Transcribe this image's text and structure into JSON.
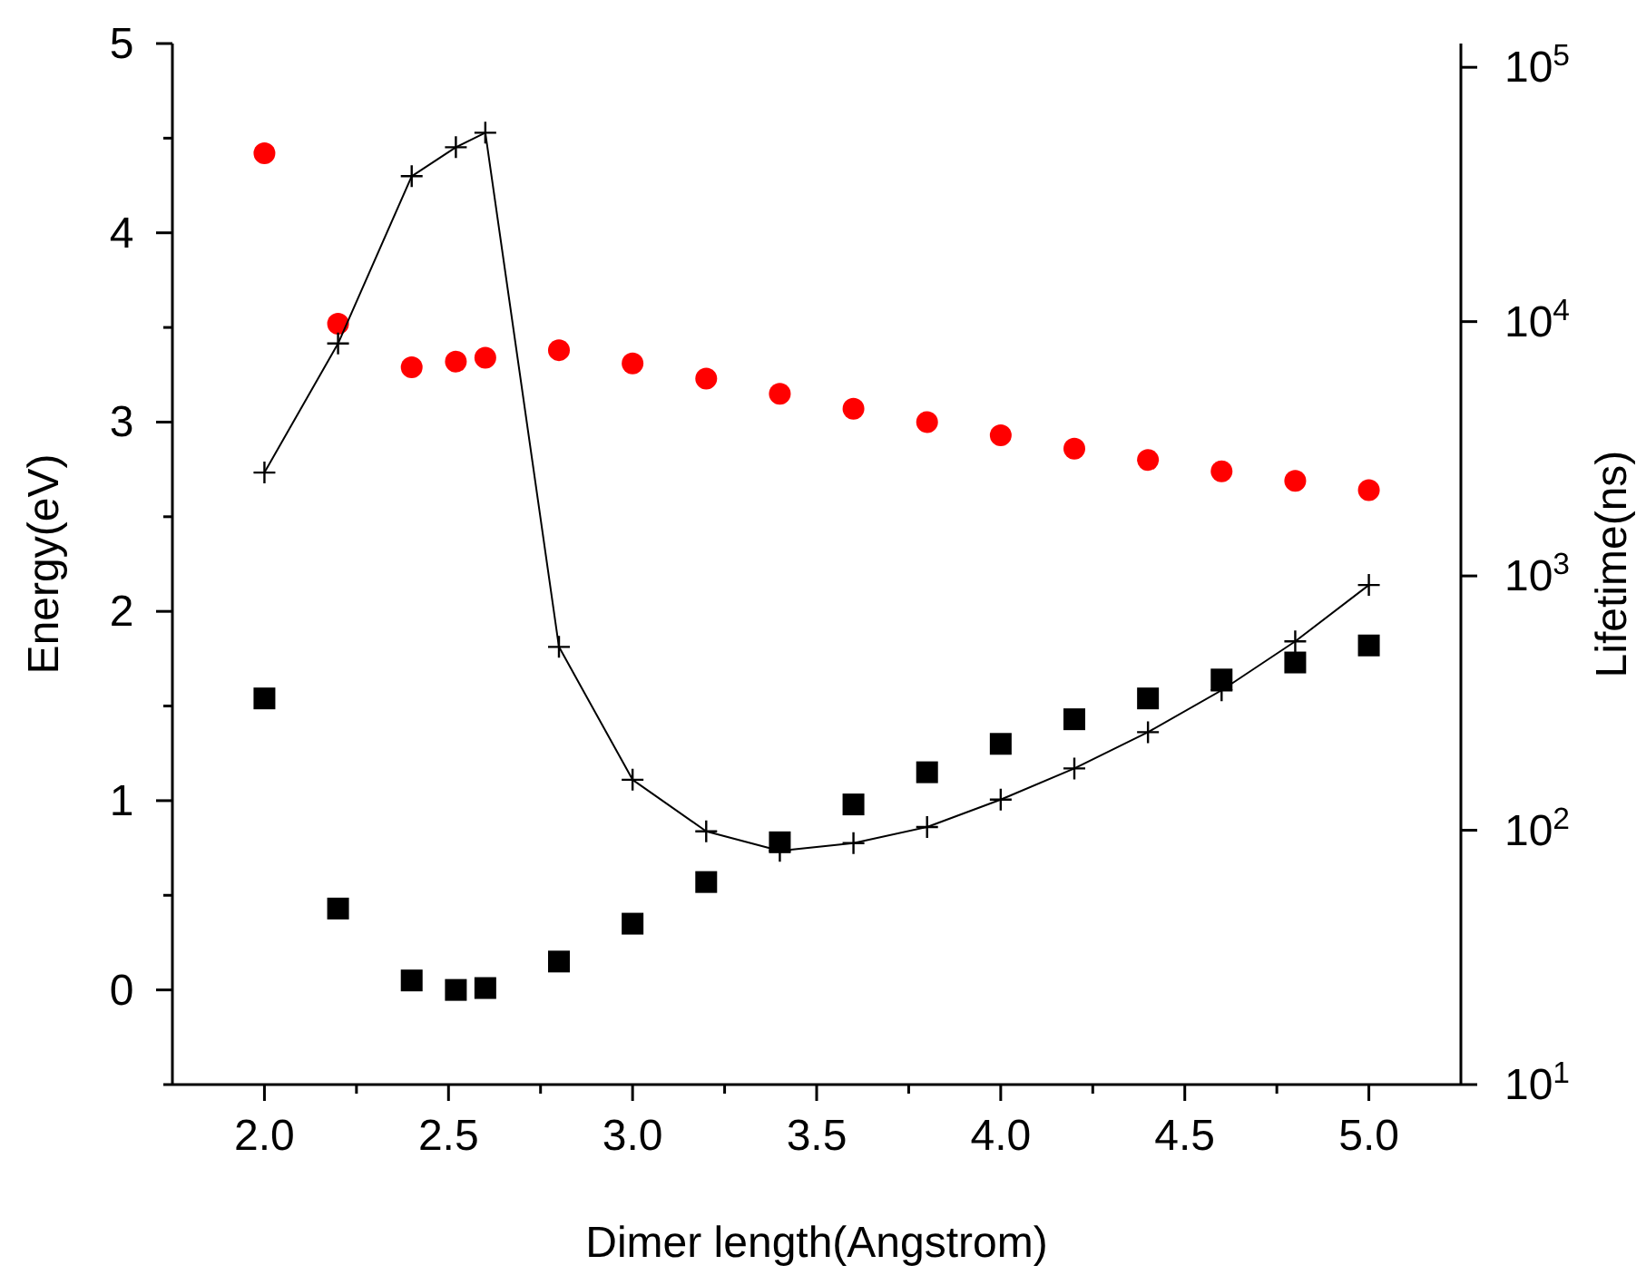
{
  "chart_data": {
    "type": "scatter",
    "xlabel": "Dimer length(Angstrom)",
    "ylabel": "Energy(eV)",
    "y2label": "Lifetime(ns)",
    "x": [
      2.0,
      2.2,
      2.4,
      2.52,
      2.6,
      2.8,
      3.0,
      3.2,
      3.4,
      3.6,
      3.8,
      4.0,
      4.2,
      4.4,
      4.6,
      4.8,
      5.0
    ],
    "xlim": [
      1.75,
      5.25
    ],
    "xticks": [
      {
        "value": 2,
        "label": "2.0"
      },
      {
        "value": 2.25,
        "label": null
      },
      {
        "value": 2.5,
        "label": "2.5"
      },
      {
        "value": 2.75,
        "label": null
      },
      {
        "value": 3,
        "label": "3.0"
      },
      {
        "value": 3.25,
        "label": null
      },
      {
        "value": 3.5,
        "label": "3.5"
      },
      {
        "value": 3.75,
        "label": null
      },
      {
        "value": 4,
        "label": "4.0"
      },
      {
        "value": 4.25,
        "label": null
      },
      {
        "value": 4.5,
        "label": "4.5"
      },
      {
        "value": 4.75,
        "label": null
      },
      {
        "value": 5,
        "label": "5.0"
      }
    ],
    "ylim": [
      -0.5,
      5
    ],
    "yticks": [
      {
        "value": -0.5,
        "label": null
      },
      0,
      {
        "value": 0.5,
        "label": null
      },
      1,
      {
        "value": 1.5,
        "label": null
      },
      2,
      {
        "value": 2.5,
        "label": null
      },
      3,
      {
        "value": 3.5,
        "label": null
      },
      4,
      {
        "value": 4.5,
        "label": null
      },
      5
    ],
    "y2lim": [
      10,
      124000
    ],
    "y2ticks": [
      {
        "value": 10,
        "label": "10$^{1}$"
      },
      {
        "value": 100,
        "label": "10$^{2}$"
      },
      {
        "value": 1000,
        "label": "10$^{3}$"
      },
      {
        "value": 10000,
        "label": "10$^{4}$"
      },
      {
        "value": 100000,
        "label": "10$^{5}$"
      }
    ],
    "log": "y2",
    "grid": false,
    "series": [
      {
        "marker": "circle",
        "color": "#ff0000",
        "values": [
          4.42,
          3.52,
          3.29,
          3.32,
          3.34,
          3.38,
          3.31,
          3.23,
          3.15,
          3.07,
          3.0,
          2.93,
          2.86,
          2.8,
          2.74,
          2.69,
          2.64
        ]
      },
      {
        "marker": "square",
        "color": "#000000",
        "values": [
          1.54,
          0.43,
          0.05,
          0.0,
          0.01,
          0.15,
          0.35,
          0.57,
          0.78,
          0.98,
          1.15,
          1.3,
          1.43,
          1.54,
          1.64,
          1.73,
          1.82
        ]
      },
      {
        "type": "line",
        "axis": "y2",
        "marker": "cross",
        "line_style": "solid",
        "color": "#000000",
        "values": [
          2550,
          8200,
          37300,
          48500,
          55300,
          526,
          158,
          99,
          83,
          89,
          103,
          132,
          175,
          243,
          355,
          553,
          921
        ]
      }
    ]
  }
}
